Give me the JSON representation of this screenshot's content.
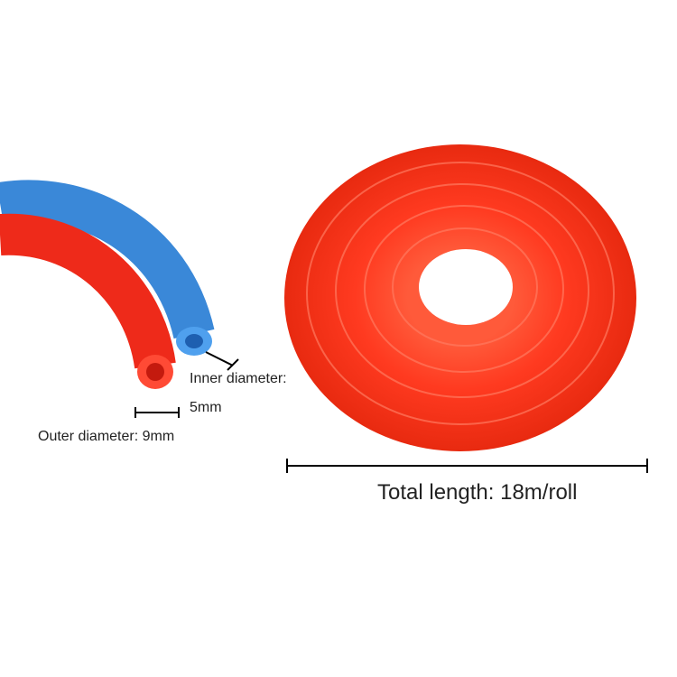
{
  "labels": {
    "inner_1": "Inner diameter:",
    "inner_2": "5mm",
    "outer": "Outer diameter: 9mm",
    "length": "Total length: 18m/roll"
  }
}
